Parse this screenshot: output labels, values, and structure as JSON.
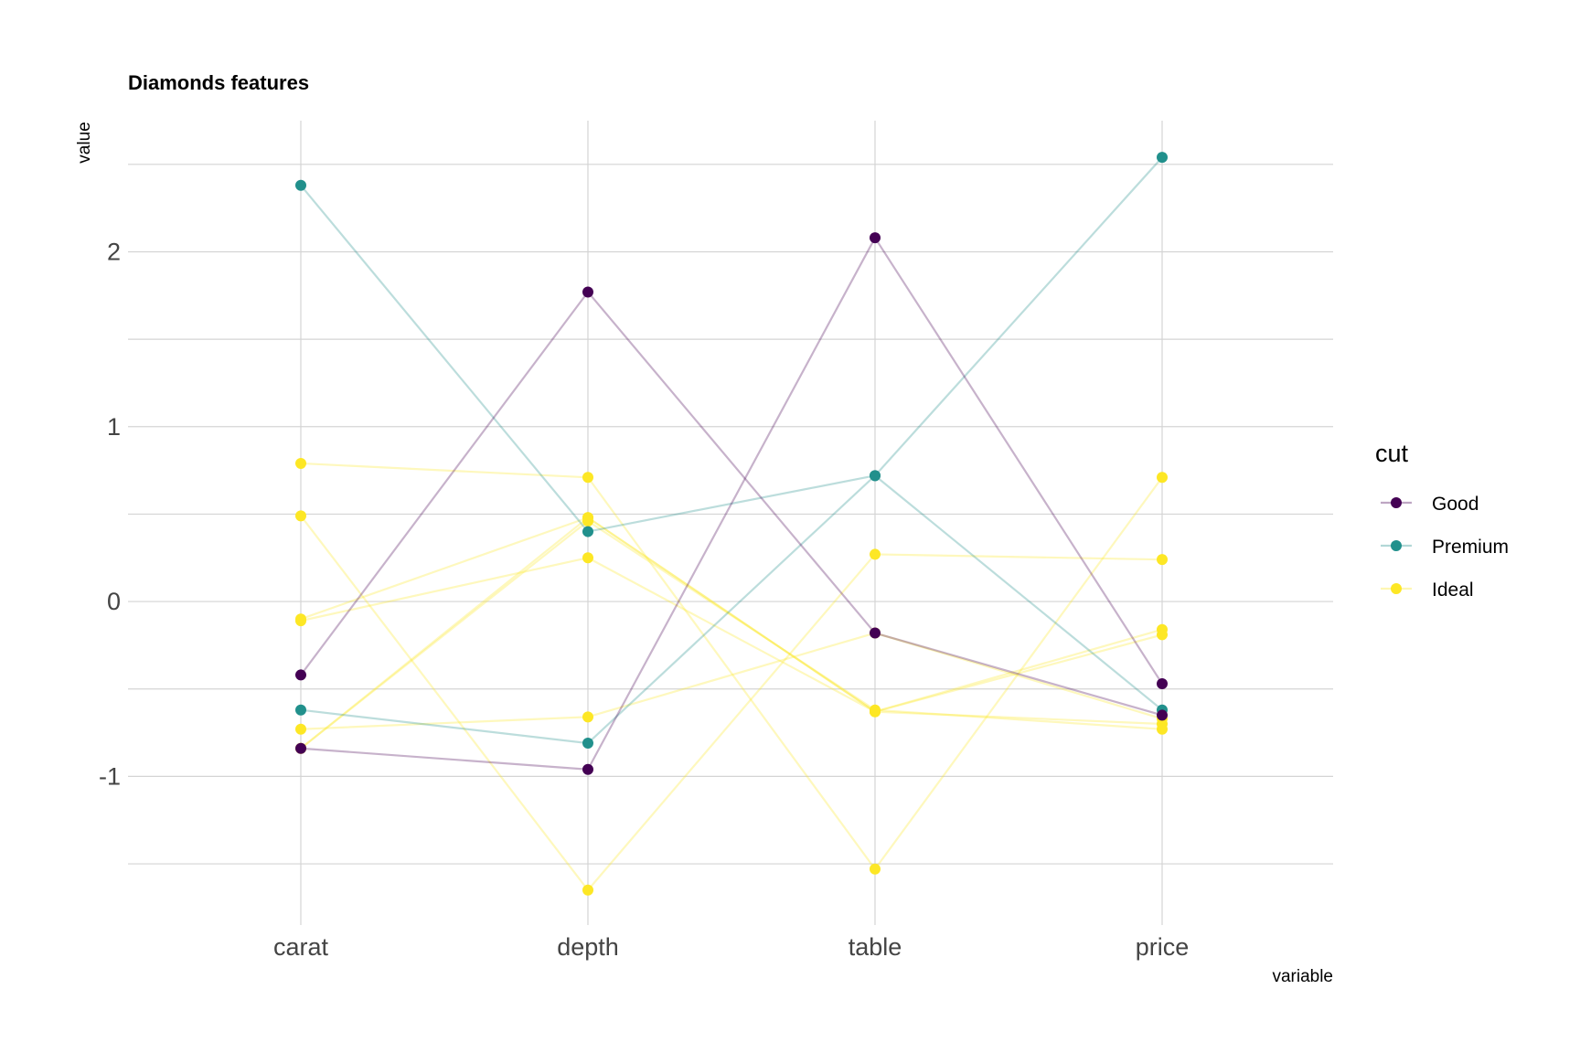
{
  "chart_data": {
    "type": "line",
    "title": "Diamonds features",
    "xlabel": "variable",
    "ylabel": "value",
    "categories": [
      "carat",
      "depth",
      "table",
      "price"
    ],
    "ylim": [
      -1.85,
      2.75
    ],
    "yticks": [
      -1,
      0,
      1,
      2
    ],
    "grid": true,
    "legend": {
      "title": "cut",
      "placement": "right",
      "entries": [
        {
          "label": "Good",
          "color": "#440154"
        },
        {
          "label": "Premium",
          "color": "#21908C"
        },
        {
          "label": "Ideal",
          "color": "#FDE725"
        }
      ]
    },
    "series": [
      {
        "group": "Good",
        "values": [
          -0.42,
          1.77,
          -0.18,
          -0.65
        ]
      },
      {
        "group": "Good",
        "values": [
          -0.84,
          -0.96,
          2.08,
          -0.47
        ]
      },
      {
        "group": "Premium",
        "values": [
          2.38,
          0.4,
          0.72,
          -0.62
        ]
      },
      {
        "group": "Premium",
        "values": [
          -0.62,
          -0.81,
          0.72,
          2.54
        ]
      },
      {
        "group": "Ideal",
        "values": [
          0.79,
          0.71,
          -1.53,
          0.71
        ]
      },
      {
        "group": "Ideal",
        "values": [
          0.49,
          -1.65,
          0.27,
          0.24
        ]
      },
      {
        "group": "Ideal",
        "values": [
          -0.1,
          0.48,
          -0.63,
          -0.16
        ]
      },
      {
        "group": "Ideal",
        "values": [
          -0.11,
          0.25,
          -0.63,
          -0.19
        ]
      },
      {
        "group": "Ideal",
        "values": [
          -0.84,
          0.48,
          -0.63,
          -0.7
        ]
      },
      {
        "group": "Ideal",
        "values": [
          -0.73,
          -0.66,
          -0.18,
          -0.67
        ]
      },
      {
        "group": "Ideal",
        "values": [
          -0.84,
          0.46,
          -0.62,
          -0.73
        ]
      }
    ]
  }
}
